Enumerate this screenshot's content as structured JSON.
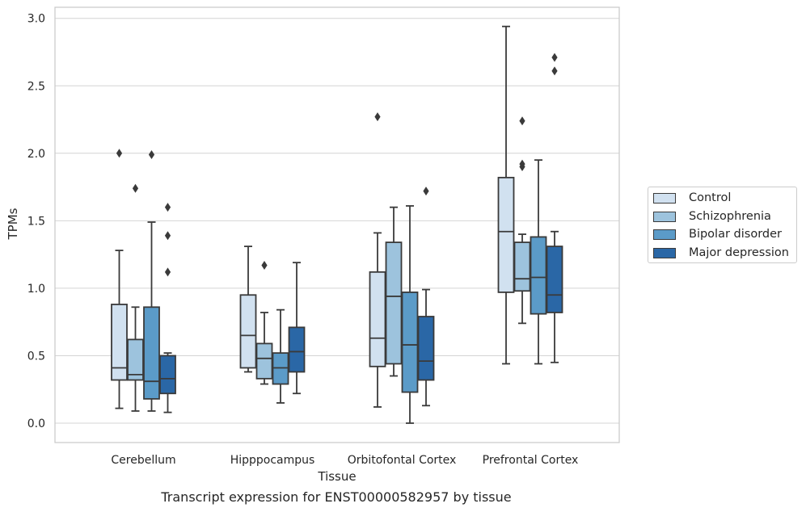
{
  "caption": "Transcript expression for ENST00000582957 by tissue",
  "chart_data": {
    "type": "box",
    "title": "",
    "xlabel": "Tissue",
    "ylabel": "TPMs",
    "ylim": [
      -0.14,
      3.08
    ],
    "yticks": [
      "0.0",
      "0.5",
      "1.0",
      "1.5",
      "2.0",
      "2.5",
      "3.0"
    ],
    "grid": true,
    "legend_position": "right",
    "categories": [
      "Cerebellum",
      "Hipppocampus",
      "Orbitofontal Cortex",
      "Prefrontal Cortex"
    ],
    "series": [
      {
        "name": "Control",
        "color": "#d1e1f0",
        "boxes": [
          {
            "whislo": 0.11,
            "q1": 0.32,
            "med": 0.41,
            "q3": 0.88,
            "whishi": 1.28,
            "fliers": [
              2.0
            ]
          },
          {
            "whislo": 0.38,
            "q1": 0.41,
            "med": 0.65,
            "q3": 0.95,
            "whishi": 1.31,
            "fliers": []
          },
          {
            "whislo": 0.12,
            "q1": 0.42,
            "med": 0.63,
            "q3": 1.12,
            "whishi": 1.41,
            "fliers": [
              2.27
            ]
          },
          {
            "whislo": 0.44,
            "q1": 0.97,
            "med": 1.42,
            "q3": 1.82,
            "whishi": 2.94,
            "fliers": []
          }
        ]
      },
      {
        "name": "Schizophrenia",
        "color": "#9dc3dd",
        "boxes": [
          {
            "whislo": 0.09,
            "q1": 0.32,
            "med": 0.36,
            "q3": 0.62,
            "whishi": 0.86,
            "fliers": [
              1.74
            ]
          },
          {
            "whislo": 0.29,
            "q1": 0.33,
            "med": 0.48,
            "q3": 0.59,
            "whishi": 0.82,
            "fliers": [
              1.17
            ]
          },
          {
            "whislo": 0.35,
            "q1": 0.44,
            "med": 0.94,
            "q3": 1.34,
            "whishi": 1.6,
            "fliers": []
          },
          {
            "whislo": 0.74,
            "q1": 0.98,
            "med": 1.07,
            "q3": 1.34,
            "whishi": 1.4,
            "fliers": [
              1.9,
              1.92,
              2.24
            ]
          }
        ]
      },
      {
        "name": "Bipolar disorder",
        "color": "#5b9bc8",
        "boxes": [
          {
            "whislo": 0.09,
            "q1": 0.18,
            "med": 0.31,
            "q3": 0.86,
            "whishi": 1.49,
            "fliers": [
              1.99
            ]
          },
          {
            "whislo": 0.15,
            "q1": 0.29,
            "med": 0.41,
            "q3": 0.52,
            "whishi": 0.84,
            "fliers": []
          },
          {
            "whislo": 0.0,
            "q1": 0.23,
            "med": 0.58,
            "q3": 0.97,
            "whishi": 1.61,
            "fliers": []
          },
          {
            "whislo": 0.44,
            "q1": 0.81,
            "med": 1.08,
            "q3": 1.38,
            "whishi": 1.95,
            "fliers": []
          }
        ]
      },
      {
        "name": "Major depression",
        "color": "#2a67a6",
        "boxes": [
          {
            "whislo": 0.08,
            "q1": 0.22,
            "med": 0.33,
            "q3": 0.5,
            "whishi": 0.52,
            "fliers": [
              1.12,
              1.39,
              1.6
            ]
          },
          {
            "whislo": 0.22,
            "q1": 0.38,
            "med": 0.53,
            "q3": 0.71,
            "whishi": 1.19,
            "fliers": []
          },
          {
            "whislo": 0.13,
            "q1": 0.32,
            "med": 0.46,
            "q3": 0.79,
            "whishi": 0.99,
            "fliers": [
              1.72
            ]
          },
          {
            "whislo": 0.45,
            "q1": 0.82,
            "med": 0.95,
            "q3": 1.31,
            "whishi": 1.42,
            "fliers": [
              2.61,
              2.71
            ]
          }
        ]
      }
    ]
  },
  "colors": {
    "grid": "#d4d4d4",
    "frame": "#cccccc",
    "box_edge": "#3a3a3a"
  }
}
